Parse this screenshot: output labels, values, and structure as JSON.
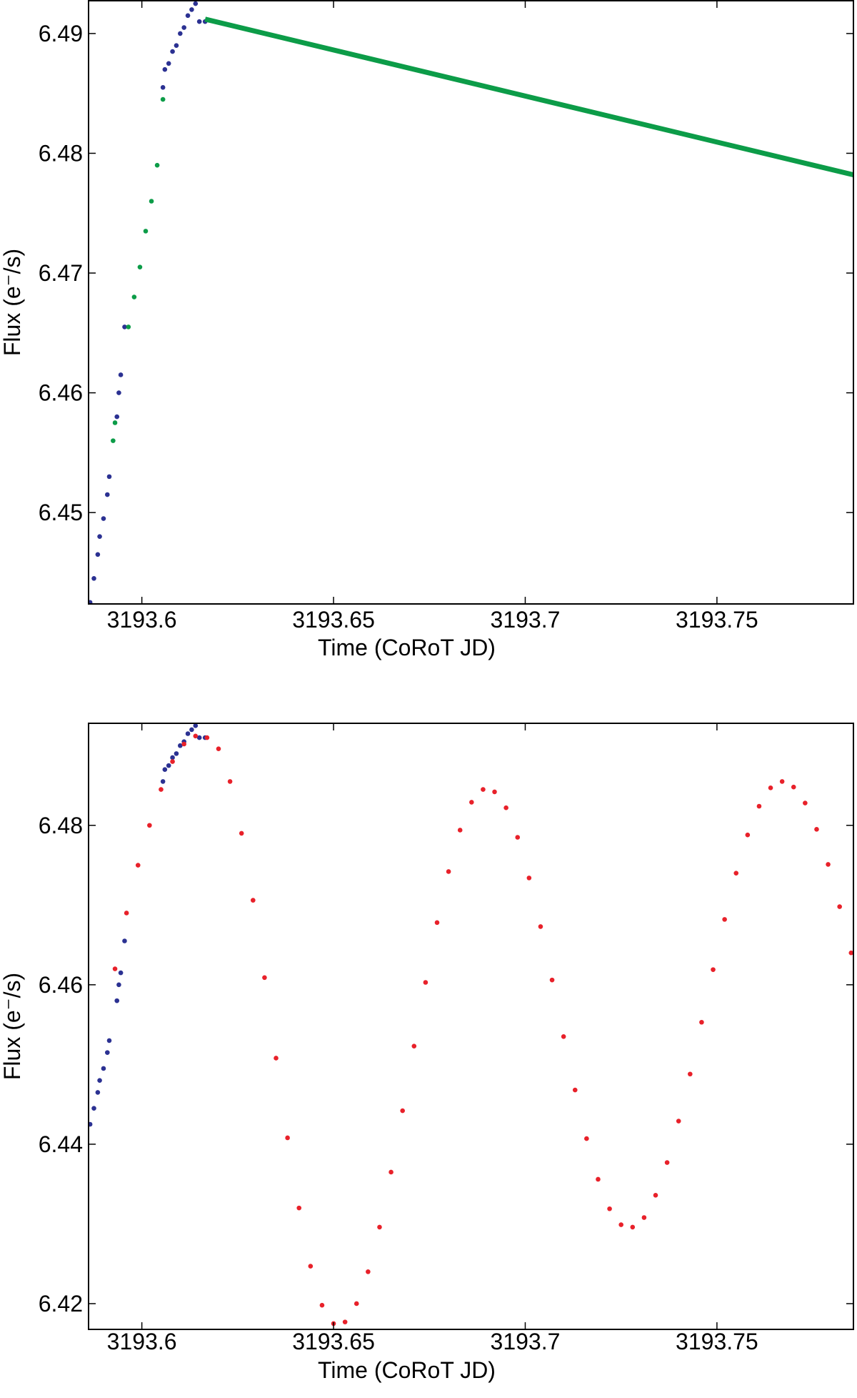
{
  "chart_data": [
    {
      "type": "scatter",
      "x_label": "Time (CoRoT JD)",
      "y_label": "Flux (e⁻/s)",
      "xlim": [
        3193.5861,
        3193.7856
      ],
      "ylim": [
        6.44237,
        6.49274
      ],
      "xticks": [
        3193.6,
        3193.65,
        3193.7,
        3193.75
      ],
      "yticks": [
        6.45,
        6.46,
        6.47,
        6.48,
        6.49
      ],
      "series": [
        {
          "color": "#2b3192",
          "style": "dots",
          "x": [
            3193.5865,
            3193.5875,
            3193.5885,
            3193.589,
            3193.59,
            3193.591,
            3193.5915,
            3193.5935,
            3193.594,
            3193.5945,
            3193.5955,
            3193.6055,
            3193.606,
            3193.607,
            3193.608,
            3193.609,
            3193.61,
            3193.611,
            3193.612,
            3193.613,
            3193.614,
            3193.615,
            3193.6165
          ],
          "values": [
            6.4425,
            6.4445,
            6.4465,
            6.448,
            6.4495,
            6.4515,
            6.453,
            6.458,
            6.46,
            6.4615,
            6.4655,
            6.4855,
            6.487,
            6.4875,
            6.4885,
            6.489,
            6.49,
            6.4905,
            6.4915,
            6.492,
            6.4925,
            6.491,
            6.491
          ]
        },
        {
          "color": "#0c9c48",
          "style": "dots",
          "x": [
            3193.5925,
            3193.593,
            3193.5965,
            3193.598,
            3193.5995,
            3193.601,
            3193.6025,
            3193.604,
            3193.6055
          ],
          "values": [
            6.456,
            6.4575,
            6.4655,
            6.468,
            6.4705,
            6.4735,
            6.476,
            6.479,
            6.4845
          ]
        },
        {
          "color": "#0c9c48",
          "style": "line",
          "x": [
            3193.6165,
            3193.7856
          ],
          "values": [
            6.4912,
            6.4782
          ]
        }
      ]
    },
    {
      "type": "scatter",
      "x_label": "Time (CoRoT JD)",
      "y_label": "Flux (e⁻/s)",
      "xlim": [
        3193.5861,
        3193.7856
      ],
      "ylim": [
        6.41677,
        6.4928
      ],
      "xticks": [
        3193.6,
        3193.65,
        3193.7,
        3193.75
      ],
      "yticks": [
        6.42,
        6.44,
        6.46,
        6.48
      ],
      "series": [
        {
          "color": "#2b3192",
          "style": "dots",
          "x": [
            3193.5865,
            3193.5875,
            3193.5885,
            3193.589,
            3193.59,
            3193.591,
            3193.5915,
            3193.5935,
            3193.594,
            3193.5945,
            3193.5955,
            3193.6055,
            3193.606,
            3193.607,
            3193.608,
            3193.609,
            3193.61,
            3193.611,
            3193.612,
            3193.613,
            3193.614,
            3193.615,
            3193.6165
          ],
          "values": [
            6.4425,
            6.4445,
            6.4465,
            6.448,
            6.4495,
            6.4515,
            6.453,
            6.458,
            6.46,
            6.4615,
            6.4655,
            6.4855,
            6.487,
            6.4875,
            6.4885,
            6.489,
            6.49,
            6.4905,
            6.4915,
            6.492,
            6.4925,
            6.491,
            6.491
          ]
        },
        {
          "color": "#e8212a",
          "style": "dots",
          "x": [
            3193.593,
            3193.596,
            3193.599,
            3193.602,
            3193.605,
            3193.608,
            3193.611,
            3193.614,
            3193.617,
            3193.62,
            3193.623,
            3193.626,
            3193.629,
            3193.632,
            3193.635,
            3193.638,
            3193.641,
            3193.644,
            3193.647,
            3193.65,
            3193.653,
            3193.656,
            3193.659,
            3193.662,
            3193.665,
            3193.668,
            3193.671,
            3193.674,
            3193.677,
            3193.68,
            3193.683,
            3193.686,
            3193.689,
            3193.692,
            3193.695,
            3193.698,
            3193.701,
            3193.704,
            3193.707,
            3193.71,
            3193.713,
            3193.716,
            3193.719,
            3193.722,
            3193.725,
            3193.728,
            3193.731,
            3193.734,
            3193.737,
            3193.74,
            3193.743,
            3193.746,
            3193.749,
            3193.752,
            3193.755,
            3193.758,
            3193.761,
            3193.764,
            3193.767,
            3193.77,
            3193.773,
            3193.776,
            3193.779,
            3193.782,
            3193.785
          ],
          "values": [
            6.462,
            6.469,
            6.475,
            6.48,
            6.4845,
            6.488,
            6.4902,
            6.4912,
            6.491,
            6.4896,
            6.4855,
            6.479,
            6.4706,
            6.4609,
            6.4508,
            6.4408,
            6.432,
            6.4247,
            6.4198,
            6.4175,
            6.4177,
            6.42,
            6.424,
            6.4296,
            6.4365,
            6.4442,
            6.4523,
            6.4603,
            6.4678,
            6.4742,
            6.4794,
            6.4829,
            6.4845,
            6.4842,
            6.4822,
            6.4785,
            6.4734,
            6.4673,
            6.4606,
            6.4535,
            6.4468,
            6.4407,
            6.4356,
            6.4319,
            6.4299,
            6.4296,
            6.4308,
            6.4336,
            6.4377,
            6.4429,
            6.4488,
            6.4553,
            6.4619,
            6.4682,
            6.474,
            6.4788,
            6.4824,
            6.4847,
            6.4855,
            6.4848,
            6.4828,
            6.4795,
            6.4751,
            6.4698,
            6.464
          ]
        }
      ]
    }
  ]
}
